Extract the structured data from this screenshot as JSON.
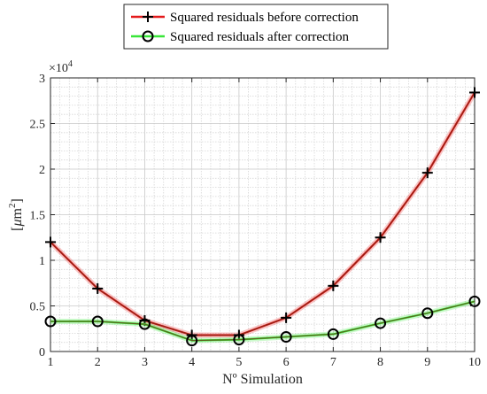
{
  "chart_data": {
    "type": "line",
    "title": "",
    "xlabel": "Nº Simulation",
    "ylabel_main": "[",
    "ylabel_mu": "μ",
    "ylabel_unit": "m",
    "ylabel_exp": "2",
    "ylabel_close": "]",
    "y_multiplier": "×10",
    "y_multiplier_exp": "4",
    "x": [
      1,
      2,
      3,
      4,
      5,
      6,
      7,
      8,
      9,
      10
    ],
    "xlim": [
      1,
      10
    ],
    "ylim": [
      0,
      3
    ],
    "x_ticks": [
      1,
      2,
      3,
      4,
      5,
      6,
      7,
      8,
      9,
      10
    ],
    "y_ticks": [
      0,
      0.5,
      1,
      1.5,
      2,
      2.5,
      3
    ],
    "y_tick_labels": [
      "0",
      "0.5",
      "1",
      "1.5",
      "2",
      "2.5",
      "3"
    ],
    "grid": true,
    "minor_grid": true,
    "legend_position": "top-center-outside",
    "series": [
      {
        "name": "Squared residuals before correction",
        "color": "#e41a1c",
        "marker": "plus",
        "values": [
          1.2,
          0.69,
          0.34,
          0.18,
          0.18,
          0.37,
          0.72,
          1.25,
          1.96,
          2.84
        ]
      },
      {
        "name": "Squared residuals after correction",
        "color": "#39e639",
        "marker": "circle",
        "values": [
          0.33,
          0.33,
          0.3,
          0.12,
          0.13,
          0.16,
          0.19,
          0.31,
          0.42,
          0.55
        ]
      }
    ]
  }
}
